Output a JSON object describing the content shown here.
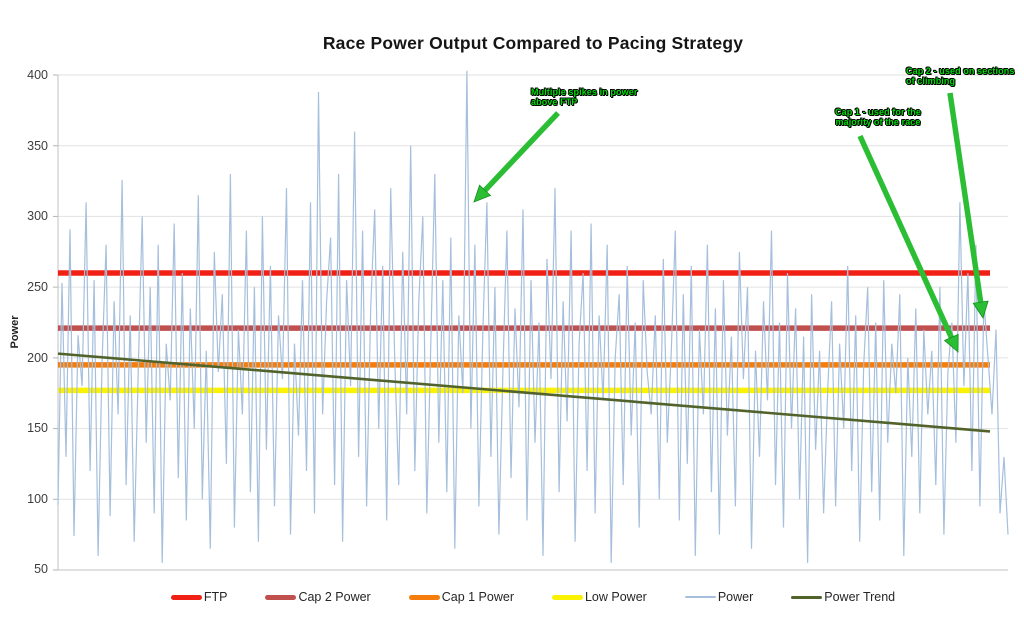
{
  "title": "Race Power Output Compared to Pacing Strategy",
  "y_axis": {
    "label": "Power",
    "ticks": [
      "400",
      "350",
      "300",
      "250",
      "200",
      "150",
      "100",
      "50"
    ]
  },
  "x_axis": {
    "label": "",
    "ticks": []
  },
  "annotations": [
    {
      "text": "Multiple spikes in power above FTP",
      "points_to": "power spike near 400"
    },
    {
      "text": "Cap 1 - used for the majority of the race",
      "points_to": "Cap 1 Power line"
    },
    {
      "text": "Cap 2 - used on sections of climbing",
      "points_to": "Cap 2 Power line"
    }
  ],
  "chart_data": {
    "type": "line",
    "title": "Race Power Output Compared to Pacing Strategy",
    "xlabel": "",
    "ylabel": "Power",
    "ylim": [
      50,
      400
    ],
    "grid": true,
    "legend_position": "bottom",
    "annotation_color": "#00dc0a",
    "arrow_color": "#2bbe35",
    "series": [
      {
        "name": "FTP",
        "type": "hline",
        "value": 260,
        "color": "#f02015"
      },
      {
        "name": "Cap 2 Power",
        "type": "hline",
        "value": 221,
        "color": "#c0504d"
      },
      {
        "name": "Cap 1 Power",
        "type": "hline",
        "value": 195,
        "color": "#f57d0b"
      },
      {
        "name": "Low Power",
        "type": "hline",
        "value": 177,
        "color": "#fbf203"
      },
      {
        "name": "Power",
        "type": "line",
        "color": "#a5bfdc",
        "values": [
          96,
          253,
          130,
          291,
          74,
          216,
          180,
          310,
          120,
          255,
          60,
          198,
          280,
          88,
          240,
          160,
          326,
          110,
          230,
          70,
          190,
          300,
          140,
          250,
          90,
          280,
          55,
          210,
          170,
          295,
          115,
          260,
          85,
          235,
          150,
          315,
          100,
          205,
          65,
          275,
          190,
          245,
          125,
          330,
          80,
          220,
          160,
          290,
          105,
          250,
          70,
          300,
          135,
          265,
          95,
          230,
          185,
          320,
          75,
          210,
          145,
          255,
          120,
          310,
          90,
          388,
          160,
          240,
          285,
          110,
          330,
          70,
          255,
          180,
          360,
          130,
          290,
          95,
          235,
          305,
          150,
          265,
          85,
          320,
          200,
          110,
          275,
          160,
          350,
          120,
          240,
          300,
          90,
          210,
          330,
          140,
          255,
          105,
          285,
          65,
          230,
          175,
          403,
          150,
          280,
          95,
          220,
          310,
          130,
          250,
          75,
          190,
          290,
          115,
          235,
          165,
          305,
          85,
          255,
          140,
          225,
          60,
          270,
          185,
          320,
          105,
          240,
          155,
          290,
          70,
          210,
          260,
          120,
          295,
          90,
          230,
          170,
          280,
          55,
          200,
          245,
          110,
          265,
          145,
          225,
          80,
          255,
          190,
          160,
          230,
          100,
          270,
          140,
          205,
          290,
          85,
          245,
          125,
          265,
          60,
          220,
          160,
          280,
          105,
          235,
          75,
          255,
          145,
          215,
          95,
          275,
          185,
          250,
          65,
          205,
          130,
          240,
          170,
          290,
          110,
          225,
          80,
          260,
          150,
          235,
          100,
          215,
          55,
          245,
          135,
          205,
          90,
          175,
          240,
          95,
          210,
          150,
          265,
          120,
          230,
          70,
          195,
          250,
          105,
          225,
          85,
          255,
          140,
          210,
          175,
          245,
          60,
          200,
          130,
          235,
          90,
          220,
          160,
          205,
          110,
          250,
          75,
          190,
          225,
          140,
          310,
          180,
          260,
          120,
          280,
          95,
          240,
          200,
          160,
          220,
          90,
          130,
          75
        ]
      },
      {
        "name": "Power Trend",
        "type": "trend",
        "start": 203,
        "end": 148,
        "color": "#51632a"
      }
    ]
  }
}
